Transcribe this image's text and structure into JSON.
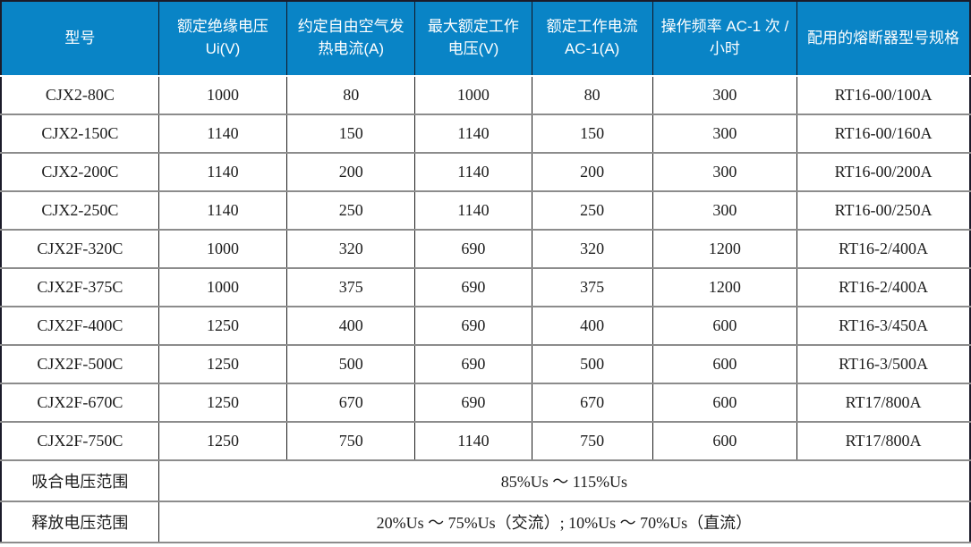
{
  "table": {
    "headers": [
      "型号",
      "额定绝缘电压 Ui(V)",
      "约定自由空气发热电流(A)",
      "最大额定工作电压(V)",
      "额定工作电流 AC-1(A)",
      "操作频率 AC-1 次 / 小时",
      "配用的熔断器型号规格"
    ],
    "rows": [
      [
        "CJX2-80C",
        "1000",
        "80",
        "1000",
        "80",
        "300",
        "RT16-00/100A"
      ],
      [
        "CJX2-150C",
        "1140",
        "150",
        "1140",
        "150",
        "300",
        "RT16-00/160A"
      ],
      [
        "CJX2-200C",
        "1140",
        "200",
        "1140",
        "200",
        "300",
        "RT16-00/200A"
      ],
      [
        "CJX2-250C",
        "1140",
        "250",
        "1140",
        "250",
        "300",
        "RT16-00/250A"
      ],
      [
        "CJX2F-320C",
        "1000",
        "320",
        "690",
        "320",
        "1200",
        "RT16-2/400A"
      ],
      [
        "CJX2F-375C",
        "1000",
        "375",
        "690",
        "375",
        "1200",
        "RT16-2/400A"
      ],
      [
        "CJX2F-400C",
        "1250",
        "400",
        "690",
        "400",
        "600",
        "RT16-3/450A"
      ],
      [
        "CJX2F-500C",
        "1250",
        "500",
        "690",
        "500",
        "600",
        "RT16-3/500A"
      ],
      [
        "CJX2F-670C",
        "1250",
        "670",
        "690",
        "670",
        "600",
        "RT17/800A"
      ],
      [
        "CJX2F-750C",
        "1250",
        "750",
        "1140",
        "750",
        "600",
        "RT17/800A"
      ]
    ],
    "footer_rows": [
      {
        "label": "吸合电压范围",
        "value": "85%Us ～ 115%Us"
      },
      {
        "label": "释放电压范围",
        "value": "20%Us ～ 75%Us（交流）; 10%Us ～ 70%Us（直流）"
      }
    ]
  },
  "colors": {
    "header_bg": "#0984c6",
    "header_text": "#ffffff",
    "body_text": "#1c1c1c",
    "row_divider": "#8c8c8c",
    "cell_divider": "#1a1a1a",
    "outer_border": "#1b1b29"
  }
}
